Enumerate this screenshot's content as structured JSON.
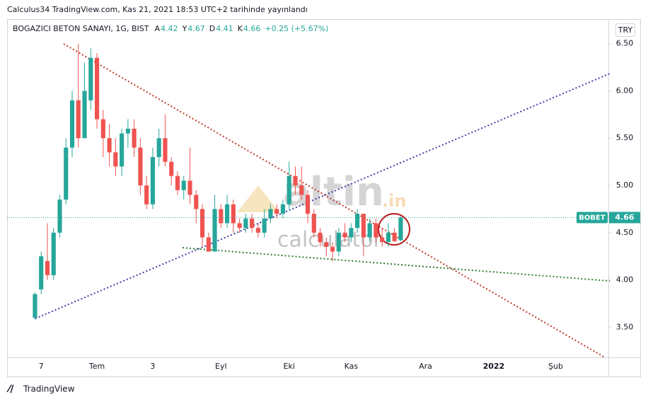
{
  "header": {
    "published": "Calculus34 TradingView.com, Kas 21, 2021 18:53 UTC+2 tarihinde yayınlandı",
    "symbol": "BOGAZICI BETON SANAYI, 1G, BIST",
    "ohlc": [
      {
        "key": "A",
        "value": "4.42"
      },
      {
        "key": "Y",
        "value": "4.67"
      },
      {
        "key": "D",
        "value": "4.41"
      },
      {
        "key": "K",
        "value": "4.66"
      }
    ],
    "change": "+0.25 (+5.67%)",
    "currency": "TRY"
  },
  "watermark": {
    "brand": "altin",
    "tld": ".in",
    "tagline": "calculator"
  },
  "footer": {
    "brand": "TradingView"
  },
  "chart_data": {
    "type": "candlestick",
    "symbol_tag": "BOBET",
    "up_color": "#26a69a",
    "down_color": "#ef5350",
    "categories": [
      null,
      null,
      null,
      null,
      null,
      "7",
      null,
      null,
      null,
      null,
      null,
      null,
      null,
      null,
      "Tem",
      null,
      null,
      null,
      null,
      null,
      null,
      null,
      null,
      "3",
      null,
      null,
      null,
      null,
      null,
      null,
      null,
      null,
      null,
      null,
      "Eyl",
      null,
      null,
      null,
      null,
      null,
      null,
      null,
      null,
      null,
      null,
      "Eki",
      null,
      null,
      null,
      null,
      null,
      null,
      null,
      null,
      null,
      "Kas",
      null,
      null,
      null,
      null,
      null,
      null,
      null,
      null,
      null,
      null,
      null,
      "Ara",
      null,
      null,
      null,
      null,
      null,
      null,
      null,
      null,
      null,
      null,
      "2022",
      null,
      null,
      null,
      null,
      null,
      null,
      null,
      null,
      null,
      "Şub",
      null,
      null,
      null,
      null,
      null,
      null,
      null,
      null
    ],
    "series": {
      "open": [
        null,
        null,
        null,
        null,
        3.6,
        3.9,
        4.2,
        4.05,
        4.5,
        4.85,
        5.4,
        5.9,
        5.5,
        5.9,
        6.35,
        5.7,
        5.5,
        5.35,
        5.2,
        5.55,
        5.6,
        5.4,
        5.0,
        4.8,
        5.3,
        5.5,
        5.25,
        5.1,
        4.95,
        5.05,
        4.9,
        4.75,
        4.45,
        4.3,
        4.75,
        4.6,
        4.8,
        4.6,
        4.55,
        4.65,
        4.55,
        4.5,
        4.65,
        4.75,
        4.7,
        4.8,
        5.1,
        5.0,
        4.9,
        4.7,
        4.5,
        4.4,
        4.35,
        4.3,
        4.5,
        4.45,
        4.55,
        4.7,
        4.45,
        4.6,
        4.45,
        4.4,
        4.5,
        4.42,
        null,
        null,
        null,
        null,
        null,
        null,
        null,
        null,
        null,
        null,
        null,
        null,
        null,
        null,
        null,
        null,
        null,
        null,
        null,
        null,
        null,
        null,
        null,
        null,
        null,
        null,
        null,
        null,
        null,
        null,
        null,
        null,
        null
      ],
      "high": [
        null,
        null,
        null,
        null,
        3.87,
        4.3,
        4.6,
        4.55,
        4.9,
        5.5,
        6.0,
        6.5,
        6.3,
        6.45,
        6.4,
        5.8,
        5.65,
        5.5,
        5.6,
        5.7,
        5.7,
        5.5,
        5.1,
        5.4,
        5.6,
        5.75,
        5.3,
        5.15,
        5.1,
        5.4,
        4.95,
        4.8,
        4.5,
        4.9,
        4.8,
        4.9,
        4.85,
        4.65,
        4.7,
        4.7,
        4.6,
        4.75,
        4.8,
        4.8,
        4.85,
        5.25,
        5.2,
        5.2,
        4.95,
        4.75,
        4.55,
        4.45,
        4.4,
        4.55,
        4.6,
        4.6,
        4.75,
        4.7,
        4.65,
        4.65,
        4.55,
        4.6,
        4.55,
        4.67,
        null,
        null,
        null,
        null,
        null,
        null,
        null,
        null,
        null,
        null,
        null,
        null,
        null,
        null,
        null,
        null,
        null,
        null,
        null,
        null,
        null,
        null,
        null,
        null,
        null,
        null,
        null,
        null,
        null,
        null,
        null,
        null,
        null
      ],
      "low": [
        null,
        null,
        null,
        null,
        3.58,
        3.85,
        4.0,
        4.0,
        4.45,
        4.8,
        5.3,
        5.4,
        5.5,
        5.8,
        5.6,
        5.3,
        5.2,
        5.1,
        5.1,
        5.4,
        5.3,
        4.9,
        4.75,
        4.75,
        5.2,
        5.2,
        5.0,
        4.9,
        4.85,
        4.8,
        4.6,
        4.35,
        4.3,
        4.3,
        4.55,
        4.55,
        4.5,
        4.5,
        4.5,
        4.5,
        4.45,
        4.45,
        4.6,
        4.65,
        4.65,
        4.75,
        4.9,
        4.85,
        4.6,
        4.45,
        4.35,
        4.25,
        4.2,
        4.25,
        4.4,
        4.4,
        4.5,
        4.25,
        4.4,
        4.4,
        4.35,
        4.35,
        4.4,
        4.41,
        null,
        null,
        null,
        null,
        null,
        null,
        null,
        null,
        null,
        null,
        null,
        null,
        null,
        null,
        null,
        null,
        null,
        null,
        null,
        null,
        null,
        null,
        null,
        null,
        null,
        null,
        null,
        null,
        null,
        null,
        null,
        null,
        null
      ],
      "close": [
        null,
        null,
        null,
        null,
        3.85,
        4.25,
        4.05,
        4.5,
        4.85,
        5.4,
        5.9,
        5.5,
        6.0,
        6.35,
        5.7,
        5.5,
        5.35,
        5.2,
        5.55,
        5.6,
        5.4,
        5.0,
        4.8,
        5.3,
        5.5,
        5.25,
        5.1,
        4.95,
        5.05,
        4.9,
        4.75,
        4.45,
        4.3,
        4.75,
        4.6,
        4.8,
        4.6,
        4.55,
        4.65,
        4.55,
        4.5,
        4.65,
        4.75,
        4.7,
        4.8,
        5.1,
        5.0,
        4.9,
        4.7,
        4.5,
        4.4,
        4.35,
        4.3,
        4.5,
        4.45,
        4.55,
        4.7,
        4.45,
        4.6,
        4.45,
        4.4,
        4.5,
        4.41,
        4.66,
        null,
        null,
        null,
        null,
        null,
        null,
        null,
        null,
        null,
        null,
        null,
        null,
        null,
        null,
        null,
        null,
        null,
        null,
        null,
        null,
        null,
        null,
        null,
        null,
        null,
        null,
        null,
        null,
        null,
        null,
        null,
        null,
        null
      ]
    },
    "ylim": [
      3.18,
      6.76
    ],
    "yticks": [
      {
        "value": 3.5,
        "label": "3.50"
      },
      {
        "value": 4,
        "label": "4.00"
      },
      {
        "value": 4.5,
        "label": "4.50"
      },
      {
        "value": 5,
        "label": "5.00"
      },
      {
        "value": 5.5,
        "label": "5.50"
      },
      {
        "value": 6,
        "label": "6.00"
      },
      {
        "value": 6.5,
        "label": "6.50"
      }
    ],
    "grid": false
  }
}
